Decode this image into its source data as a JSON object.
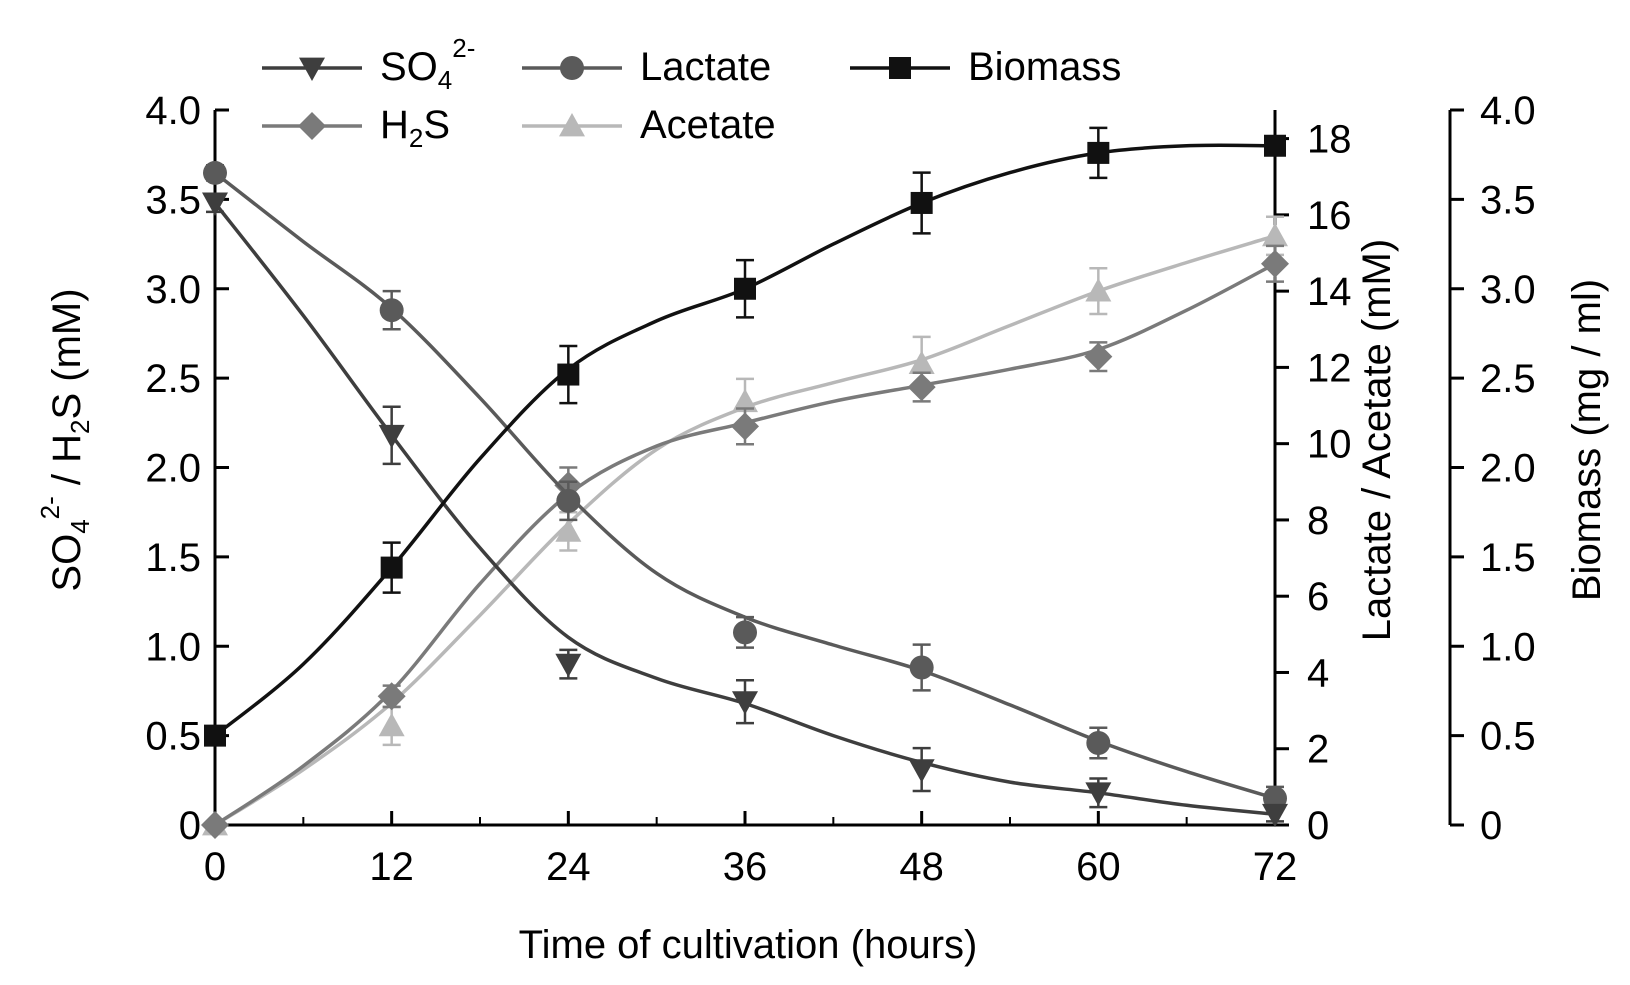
{
  "chart_data": {
    "type": "line",
    "xlabel": "Time of cultivation (hours)",
    "x": [
      0,
      12,
      24,
      36,
      48,
      60,
      72
    ],
    "x_ticks": [
      "0",
      "12",
      "24",
      "36",
      "48",
      "60",
      "72"
    ],
    "x_range": [
      0,
      72
    ],
    "y_left": {
      "label_parts": [
        "SO",
        "4",
        "2-",
        " / H",
        "2",
        "S (mM)"
      ],
      "range": [
        0,
        4.0
      ],
      "ticks": [
        0,
        0.5,
        1.0,
        1.5,
        2.0,
        2.5,
        3.0,
        3.5,
        4.0
      ],
      "tick_labels": [
        "0",
        "0.5",
        "1.0",
        "1.5",
        "2.0",
        "2.5",
        "3.0",
        "3.5",
        "4.0"
      ]
    },
    "y_right_1": {
      "label": "Lactate / Acetate (mM)",
      "range": [
        0,
        18.75
      ],
      "ticks": [
        0,
        2,
        4,
        6,
        8,
        10,
        12,
        14,
        16,
        18
      ],
      "tick_labels": [
        "0",
        "2",
        "4",
        "6",
        "8",
        "10",
        "12",
        "14",
        "16",
        "18"
      ]
    },
    "y_right_2": {
      "label": "Biomass (mg / ml)",
      "range": [
        0,
        4.0
      ],
      "ticks": [
        0,
        0.5,
        1.0,
        1.5,
        2.0,
        2.5,
        3.0,
        3.5,
        4.0
      ],
      "tick_labels": [
        "0",
        "0.5",
        "1.0",
        "1.5",
        "2.0",
        "2.5",
        "3.0",
        "3.5",
        "4.0"
      ]
    },
    "series": [
      {
        "key": "sulfate",
        "name": "SO4 2-",
        "legend_parts": [
          "SO",
          "4",
          "2-"
        ],
        "axis": "left",
        "marker": "triangle-down",
        "color": "#3e3e3e",
        "values": [
          3.48,
          2.18,
          0.9,
          0.69,
          0.31,
          0.18,
          0.06
        ],
        "errors": [
          0.05,
          0.16,
          0.08,
          0.12,
          0.12,
          0.08,
          0.04
        ],
        "curve": [
          [
            0,
            3.48
          ],
          [
            6,
            2.85
          ],
          [
            12,
            2.18
          ],
          [
            18,
            1.55
          ],
          [
            24,
            1.05
          ],
          [
            30,
            0.82
          ],
          [
            36,
            0.68
          ],
          [
            42,
            0.5
          ],
          [
            48,
            0.35
          ],
          [
            54,
            0.24
          ],
          [
            60,
            0.18
          ],
          [
            66,
            0.11
          ],
          [
            72,
            0.06
          ]
        ]
      },
      {
        "key": "h2s",
        "name": "H2S",
        "legend_parts": [
          "H",
          "2",
          "S"
        ],
        "axis": "left",
        "marker": "diamond",
        "color": "#7a7a7a",
        "values": [
          0.0,
          0.72,
          1.9,
          2.23,
          2.45,
          2.62,
          3.14
        ],
        "errors": [
          0.0,
          0.06,
          0.1,
          0.1,
          0.08,
          0.08,
          0.1
        ],
        "curve": [
          [
            0,
            0.0
          ],
          [
            6,
            0.33
          ],
          [
            12,
            0.75
          ],
          [
            18,
            1.35
          ],
          [
            24,
            1.85
          ],
          [
            30,
            2.12
          ],
          [
            36,
            2.25
          ],
          [
            42,
            2.37
          ],
          [
            48,
            2.46
          ],
          [
            54,
            2.55
          ],
          [
            60,
            2.66
          ],
          [
            66,
            2.88
          ],
          [
            72,
            3.14
          ]
        ]
      },
      {
        "key": "lactate",
        "name": "Lactate",
        "legend_parts": [
          "Lactate"
        ],
        "axis": "right1",
        "marker": "circle",
        "color": "#5a5a5a",
        "values": [
          17.1,
          13.5,
          8.5,
          5.05,
          4.13,
          2.15,
          0.7
        ],
        "errors": [
          0.2,
          0.5,
          0.5,
          0.4,
          0.6,
          0.4,
          0.3
        ],
        "curve": [
          [
            0,
            17.1
          ],
          [
            6,
            15.3
          ],
          [
            12,
            13.55
          ],
          [
            18,
            11.2
          ],
          [
            24,
            8.65
          ],
          [
            30,
            6.6
          ],
          [
            36,
            5.45
          ],
          [
            42,
            4.72
          ],
          [
            48,
            4.05
          ],
          [
            54,
            3.15
          ],
          [
            60,
            2.2
          ],
          [
            66,
            1.4
          ],
          [
            72,
            0.7
          ]
        ]
      },
      {
        "key": "acetate",
        "name": "Acetate",
        "legend_parts": [
          "Acetate"
        ],
        "axis": "right1",
        "marker": "triangle-up",
        "color": "#b8b8b8",
        "values": [
          0.0,
          2.6,
          7.7,
          11.1,
          12.1,
          14.0,
          15.45
        ],
        "errors": [
          0.0,
          0.5,
          0.5,
          0.6,
          0.7,
          0.6,
          0.5
        ],
        "curve": [
          [
            0,
            0.0
          ],
          [
            6,
            1.45
          ],
          [
            12,
            3.2
          ],
          [
            18,
            5.5
          ],
          [
            24,
            7.9
          ],
          [
            30,
            9.85
          ],
          [
            36,
            10.95
          ],
          [
            42,
            11.6
          ],
          [
            48,
            12.2
          ],
          [
            54,
            13.1
          ],
          [
            60,
            14.0
          ],
          [
            66,
            14.75
          ],
          [
            72,
            15.45
          ]
        ]
      },
      {
        "key": "biomass",
        "name": "Biomass",
        "legend_parts": [
          "Biomass"
        ],
        "axis": "right2",
        "marker": "square",
        "color": "#111111",
        "values": [
          0.5,
          1.44,
          2.52,
          3.0,
          3.48,
          3.76,
          3.8
        ],
        "errors": [
          0.05,
          0.14,
          0.16,
          0.16,
          0.17,
          0.14,
          0.05
        ],
        "curve": [
          [
            0,
            0.5
          ],
          [
            6,
            0.9
          ],
          [
            12,
            1.44
          ],
          [
            18,
            2.05
          ],
          [
            24,
            2.55
          ],
          [
            30,
            2.82
          ],
          [
            36,
            3.0
          ],
          [
            42,
            3.25
          ],
          [
            48,
            3.48
          ],
          [
            54,
            3.65
          ],
          [
            60,
            3.76
          ],
          [
            66,
            3.8
          ],
          [
            72,
            3.8
          ]
        ]
      }
    ],
    "legend_position": "top"
  }
}
